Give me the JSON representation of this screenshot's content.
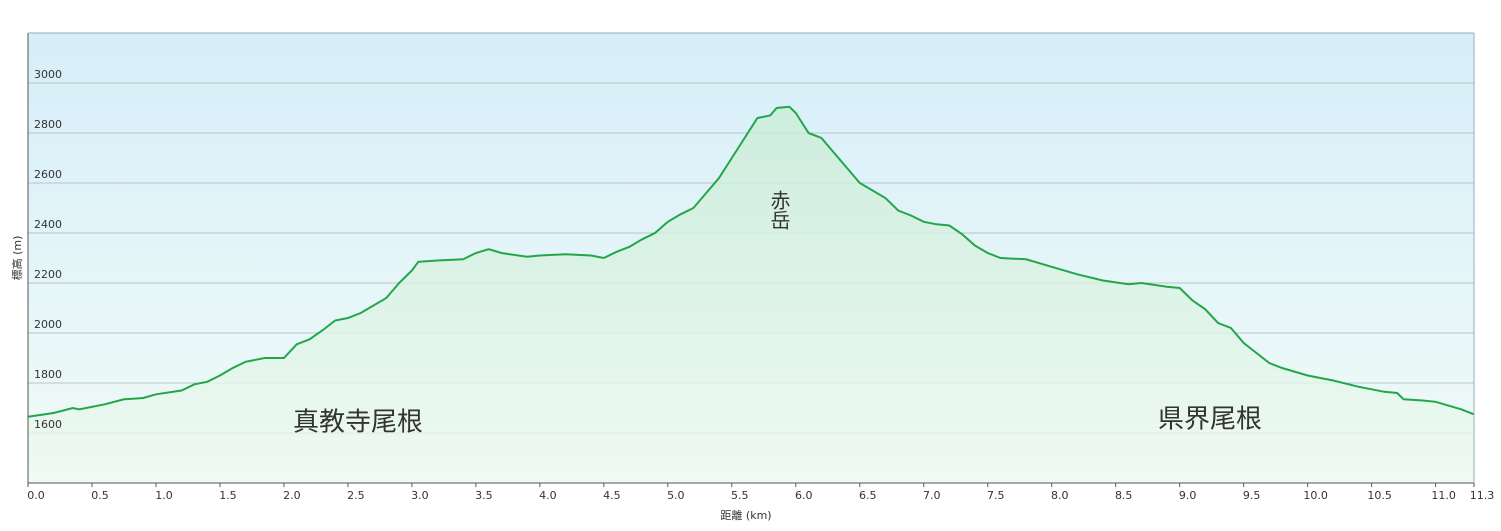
{
  "chart_data": {
    "type": "area",
    "x_label": "距離 (km)",
    "y_label": "標高 (m)",
    "color": "#22a64a",
    "grid": true,
    "xlim": [
      0,
      11.3
    ],
    "ylim": [
      1400,
      3200
    ],
    "xticks": [
      {
        "value": 0,
        "label": "0.0"
      },
      0.5,
      {
        "value": 1,
        "label": "1.0"
      },
      1.5,
      {
        "value": 2,
        "label": "2.0"
      },
      2.5,
      {
        "value": 3,
        "label": "3.0"
      },
      3.5,
      {
        "value": 4,
        "label": "4.0"
      },
      4.5,
      {
        "value": 5,
        "label": "5.0"
      },
      5.5,
      {
        "value": 6,
        "label": "6.0"
      },
      6.5,
      {
        "value": 7,
        "label": "7.0"
      },
      7.5,
      {
        "value": 8,
        "label": "8.0"
      },
      8.5,
      {
        "value": 9,
        "label": "9.0"
      },
      9.5,
      {
        "value": 10,
        "label": "10.0"
      },
      10.5,
      {
        "value": 11,
        "label": "11.0"
      },
      11.3
    ],
    "yticks": [
      1600,
      1800,
      2000,
      2200,
      2400,
      2600,
      2800,
      3000
    ],
    "x": [
      0,
      0.2,
      0.35,
      0.4,
      0.6,
      0.75,
      0.9,
      1.0,
      1.2,
      1.3,
      1.4,
      1.5,
      1.6,
      1.7,
      1.85,
      2.0,
      2.1,
      2.2,
      2.3,
      2.4,
      2.5,
      2.6,
      2.7,
      2.8,
      2.9,
      3.0,
      3.05,
      3.2,
      3.4,
      3.5,
      3.6,
      3.7,
      3.9,
      4.0,
      4.2,
      4.4,
      4.5,
      4.6,
      4.7,
      4.8,
      4.9,
      5.0,
      5.1,
      5.2,
      5.3,
      5.4,
      5.5,
      5.6,
      5.7,
      5.8,
      5.85,
      5.95,
      6.0,
      6.05,
      6.1,
      6.2,
      6.3,
      6.4,
      6.5,
      6.6,
      6.7,
      6.8,
      6.9,
      7.0,
      7.1,
      7.2,
      7.3,
      7.4,
      7.5,
      7.6,
      7.8,
      8.0,
      8.2,
      8.4,
      8.6,
      8.7,
      8.9,
      9.0,
      9.1,
      9.2,
      9.3,
      9.4,
      9.5,
      9.6,
      9.7,
      9.8,
      10.0,
      10.2,
      10.4,
      10.6,
      10.7,
      10.75,
      10.9,
      11.0,
      11.2,
      11.3
    ],
    "y": [
      1665,
      1680,
      1700,
      1695,
      1715,
      1735,
      1740,
      1755,
      1770,
      1795,
      1805,
      1830,
      1860,
      1885,
      1900,
      1900,
      1955,
      1975,
      2010,
      2050,
      2060,
      2080,
      2110,
      2140,
      2200,
      2250,
      2285,
      2290,
      2295,
      2320,
      2335,
      2320,
      2305,
      2310,
      2315,
      2310,
      2300,
      2325,
      2345,
      2375,
      2400,
      2445,
      2475,
      2500,
      2560,
      2620,
      2700,
      2780,
      2860,
      2870,
      2900,
      2905,
      2880,
      2840,
      2800,
      2780,
      2720,
      2660,
      2600,
      2570,
      2540,
      2490,
      2470,
      2445,
      2435,
      2430,
      2395,
      2350,
      2320,
      2300,
      2295,
      2265,
      2235,
      2210,
      2195,
      2200,
      2185,
      2180,
      2130,
      2095,
      2040,
      2020,
      1960,
      1920,
      1880,
      1860,
      1830,
      1810,
      1785,
      1765,
      1760,
      1735,
      1730,
      1725,
      1695,
      1675
    ],
    "annotations": [
      {
        "text": "赤岳",
        "color": "#d40000"
      },
      {
        "text": "真教寺尾根",
        "color": "#1e8c4e"
      },
      {
        "text": "県界尾根",
        "color": "#1e8c4e"
      }
    ]
  }
}
